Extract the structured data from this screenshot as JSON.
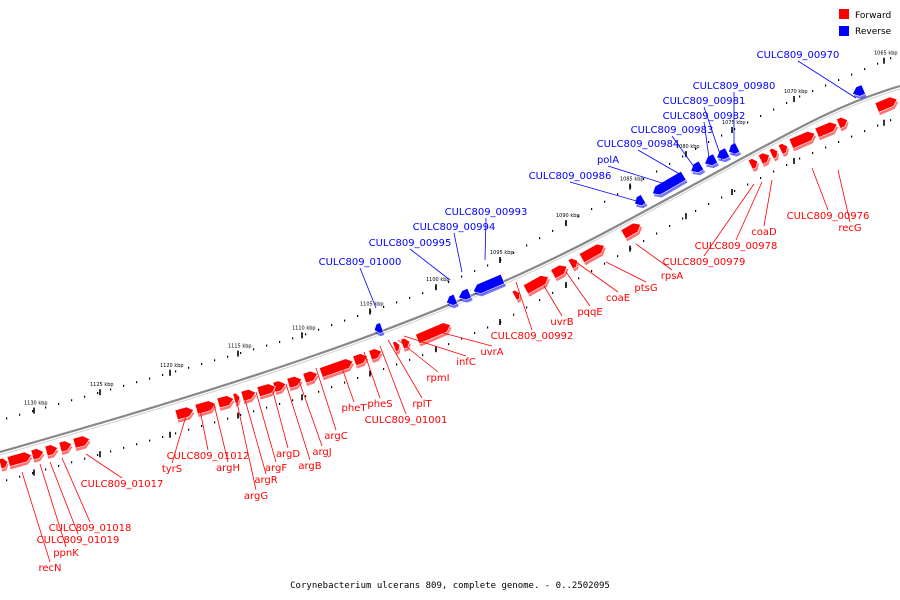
{
  "caption": "Corynebacterium ulcerans 809, complete genome. - 0..2502095",
  "legend": [
    {
      "label": "Forward",
      "color": "#ff0000"
    },
    {
      "label": "Reverse",
      "color": "#0000ff"
    }
  ],
  "colors": {
    "forward": "#ff0000",
    "reverse": "#0000ff",
    "backbone": "#888888"
  },
  "ticks": [
    "1065 kbp",
    "1070 kbp",
    "1075 kbp",
    "1080 kbp",
    "1085 kbp",
    "1090 kbp",
    "1095 kbp",
    "1100 kbp",
    "1105 kbp",
    "1110 kbp",
    "1115 kbp",
    "1120 kbp",
    "1125 kbp",
    "1130 kbp"
  ],
  "reverse_labels": [
    "CULC809_00970",
    "CULC809_00980",
    "CULC809_00981",
    "CULC809_00982",
    "CULC809_00983",
    "CULC809_00984",
    "polA",
    "CULC809_00986",
    "CULC809_00993",
    "CULC809_00994",
    "CULC809_00995",
    "CULC809_01000"
  ],
  "forward_labels": [
    "CULC809_00976",
    "recG",
    "coaD",
    "CULC809_00978",
    "CULC809_00979",
    "rpsA",
    "ptsG",
    "coaE",
    "pqqE",
    "uvrB",
    "CULC809_00992",
    "uvrA",
    "infC",
    "rpmI",
    "rplT",
    "CULC809_01001",
    "pheS",
    "pheT",
    "argC",
    "argJ",
    "argB",
    "argD",
    "argF",
    "argR",
    "argG",
    "argH",
    "CULC809_01012",
    "tyrS",
    "CULC809_01017",
    "CULC809_01018",
    "CULC809_01019",
    "ppnK",
    "recN"
  ]
}
